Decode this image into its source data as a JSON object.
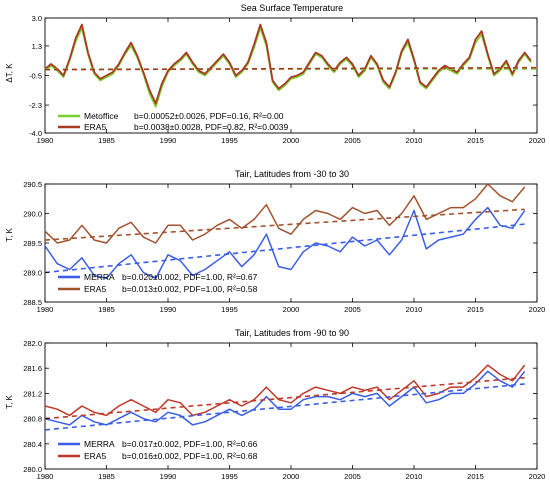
{
  "chart_data": [
    {
      "type": "line",
      "title": "Sea Surface Temperature",
      "xlabel": "",
      "ylabel": "ΔT, K",
      "xlim": [
        1980,
        2020
      ],
      "ylim": [
        -4.0,
        3.0
      ],
      "x_ticks": [
        "1980",
        "1985",
        "1990",
        "1995",
        "2000",
        "2005",
        "2010",
        "2015",
        "2020"
      ],
      "y_ticks": [
        "3.0",
        "1.3",
        "-0.5",
        "-2.3",
        "-4.0"
      ],
      "legend_position": "bottom-left",
      "series": [
        {
          "name": "Metoffice",
          "color": "#7ccd2c",
          "legend": "b=0.00052±0.0026, PDF=0.16, R²=0.00",
          "x": [
            1980.0,
            1980.5,
            1981.0,
            1981.5,
            1982.0,
            1982.5,
            1983.0,
            1983.5,
            1984.0,
            1984.5,
            1985.0,
            1985.5,
            1986.0,
            1986.5,
            1987.0,
            1987.5,
            1988.0,
            1988.5,
            1989.0,
            1989.5,
            1990.0,
            1990.5,
            1991.0,
            1991.5,
            1992.0,
            1992.5,
            1993.0,
            1993.5,
            1994.0,
            1994.5,
            1995.0,
            1995.5,
            1996.0,
            1996.5,
            1997.0,
            1997.5,
            1998.0,
            1998.5,
            1999.0,
            1999.5,
            2000.0,
            2000.5,
            2001.0,
            2001.5,
            2002.0,
            2002.5,
            2003.0,
            2003.5,
            2004.0,
            2004.5,
            2005.0,
            2005.5,
            2006.0,
            2006.5,
            2007.0,
            2007.5,
            2008.0,
            2008.5,
            2009.0,
            2009.5,
            2010.0,
            2010.5,
            2011.0,
            2011.5,
            2012.0,
            2012.5,
            2013.0,
            2013.5,
            2014.0,
            2014.5,
            2015.0,
            2015.5,
            2016.0,
            2016.5,
            2017.0,
            2017.5,
            2018.0,
            2018.5,
            2019.0,
            2019.5
          ],
          "values": [
            -0.2,
            0.1,
            -0.2,
            -0.6,
            0.4,
            1.6,
            2.4,
            0.8,
            -0.4,
            -0.8,
            -0.6,
            -0.4,
            0.1,
            0.8,
            1.3,
            0.6,
            -0.4,
            -1.6,
            -2.4,
            -1.2,
            -0.3,
            0.1,
            0.4,
            0.8,
            0.2,
            -0.3,
            -0.5,
            -0.1,
            0.3,
            0.7,
            0.2,
            -0.6,
            -0.3,
            0.2,
            1.2,
            2.4,
            1.3,
            -0.9,
            -1.4,
            -1.1,
            -0.7,
            -0.6,
            -0.4,
            0.2,
            0.8,
            0.6,
            0.1,
            -0.3,
            0.2,
            0.5,
            0.1,
            -0.6,
            -0.2,
            0.6,
            0.1,
            -0.9,
            -1.3,
            -0.4,
            0.9,
            1.5,
            0.4,
            -1.0,
            -1.3,
            -0.8,
            -0.3,
            0.0,
            -0.2,
            -0.4,
            0.1,
            0.5,
            1.5,
            2.0,
            0.7,
            -0.5,
            -0.2,
            0.3,
            -0.5,
            0.3,
            0.8,
            0.3
          ]
        },
        {
          "name": "ERA5",
          "color": "#a83a24",
          "legend": "b=0.0038±0.0028, PDF=0.82, R²=0.0039",
          "x": [
            1980.0,
            1980.5,
            1981.0,
            1981.5,
            1982.0,
            1982.5,
            1983.0,
            1983.5,
            1984.0,
            1984.5,
            1985.0,
            1985.5,
            1986.0,
            1986.5,
            1987.0,
            1987.5,
            1988.0,
            1988.5,
            1989.0,
            1989.5,
            1990.0,
            1990.5,
            1991.0,
            1991.5,
            1992.0,
            1992.5,
            1993.0,
            1993.5,
            1994.0,
            1994.5,
            1995.0,
            1995.5,
            1996.0,
            1996.5,
            1997.0,
            1997.5,
            1998.0,
            1998.5,
            1999.0,
            1999.5,
            2000.0,
            2000.5,
            2001.0,
            2001.5,
            2002.0,
            2002.5,
            2003.0,
            2003.5,
            2004.0,
            2004.5,
            2005.0,
            2005.5,
            2006.0,
            2006.5,
            2007.0,
            2007.5,
            2008.0,
            2008.5,
            2009.0,
            2009.5,
            2010.0,
            2010.5,
            2011.0,
            2011.5,
            2012.0,
            2012.5,
            2013.0,
            2013.5,
            2014.0,
            2014.5,
            2015.0,
            2015.5,
            2016.0,
            2016.5,
            2017.0,
            2017.5,
            2018.0,
            2018.5,
            2019.0,
            2019.5
          ],
          "values": [
            -0.1,
            0.2,
            -0.1,
            -0.5,
            0.5,
            1.8,
            2.6,
            0.9,
            -0.3,
            -0.7,
            -0.5,
            -0.3,
            0.2,
            0.9,
            1.5,
            0.7,
            -0.3,
            -1.4,
            -2.2,
            -1.0,
            -0.2,
            0.2,
            0.5,
            0.9,
            0.3,
            -0.2,
            -0.4,
            0.0,
            0.4,
            0.8,
            0.3,
            -0.5,
            -0.2,
            0.3,
            1.4,
            2.6,
            1.5,
            -0.8,
            -1.3,
            -1.0,
            -0.6,
            -0.5,
            -0.3,
            0.3,
            0.9,
            0.7,
            0.2,
            -0.2,
            0.3,
            0.6,
            0.2,
            -0.5,
            -0.1,
            0.7,
            0.2,
            -0.8,
            -1.2,
            -0.3,
            1.0,
            1.7,
            0.5,
            -0.9,
            -1.2,
            -0.7,
            -0.2,
            0.1,
            -0.1,
            -0.3,
            0.2,
            0.6,
            1.7,
            2.2,
            0.8,
            -0.4,
            -0.1,
            0.4,
            -0.4,
            0.4,
            0.9,
            0.4
          ]
        }
      ],
      "trend_lines": [
        {
          "name": "Metoffice",
          "color": "#7ccd2c",
          "x": [
            1980,
            2020
          ],
          "y": [
            -0.12,
            -0.1
          ]
        },
        {
          "name": "ERA5",
          "color": "#a83a24",
          "x": [
            1980,
            2020
          ],
          "y": [
            -0.15,
            -0.02
          ]
        }
      ]
    },
    {
      "type": "line",
      "title": "Tair, Latitudes from -30 to 30",
      "xlabel": "",
      "ylabel": "T, K",
      "xlim": [
        1980,
        2020
      ],
      "ylim": [
        288.5,
        290.5
      ],
      "x_ticks": [
        "1980",
        "1985",
        "1990",
        "1995",
        "2000",
        "2005",
        "2010",
        "2015",
        "2020"
      ],
      "y_ticks": [
        "290.5",
        "290.0",
        "289.5",
        "289.0",
        "288.5"
      ],
      "legend_position": "bottom-left",
      "series": [
        {
          "name": "MERRA",
          "color": "#3b5ee6",
          "legend": "b=0.020±0.002, PDF=1.00, R²=0.67",
          "x": [
            1980,
            1981,
            1982,
            1983,
            1984,
            1985,
            1986,
            1987,
            1988,
            1989,
            1990,
            1991,
            1992,
            1993,
            1994,
            1995,
            1996,
            1997,
            1998,
            1999,
            2000,
            2001,
            2002,
            2003,
            2004,
            2005,
            2006,
            2007,
            2008,
            2009,
            2010,
            2011,
            2012,
            2013,
            2014,
            2015,
            2016,
            2017,
            2018,
            2019
          ],
          "values": [
            289.45,
            289.15,
            289.05,
            289.25,
            288.95,
            288.9,
            289.15,
            289.3,
            289.0,
            288.9,
            289.3,
            289.2,
            288.95,
            289.05,
            289.2,
            289.35,
            289.1,
            289.3,
            289.65,
            289.1,
            289.05,
            289.35,
            289.5,
            289.45,
            289.35,
            289.6,
            289.45,
            289.55,
            289.3,
            289.55,
            290.05,
            289.4,
            289.55,
            289.6,
            289.65,
            289.9,
            290.1,
            289.8,
            289.75,
            290.05
          ]
        },
        {
          "name": "ERA5",
          "color": "#a0522d",
          "legend": "b=0.013±0.002, PDF=1.00, R²=0.58",
          "x": [
            1980,
            1981,
            1982,
            1983,
            1984,
            1985,
            1986,
            1987,
            1988,
            1989,
            1990,
            1991,
            1992,
            1993,
            1994,
            1995,
            1996,
            1997,
            1998,
            1999,
            2000,
            2001,
            2002,
            2003,
            2004,
            2005,
            2006,
            2007,
            2008,
            2009,
            2010,
            2011,
            2012,
            2013,
            2014,
            2015,
            2016,
            2017,
            2018,
            2019
          ],
          "values": [
            289.7,
            289.5,
            289.55,
            289.8,
            289.55,
            289.5,
            289.75,
            289.85,
            289.6,
            289.5,
            289.8,
            289.8,
            289.55,
            289.65,
            289.8,
            289.9,
            289.75,
            289.9,
            290.15,
            289.75,
            289.65,
            289.9,
            290.05,
            290.0,
            289.9,
            290.1,
            290.0,
            290.05,
            289.8,
            290.0,
            290.3,
            289.9,
            290.0,
            290.1,
            290.1,
            290.25,
            290.5,
            290.3,
            290.2,
            290.45
          ]
        }
      ],
      "trend_lines": [
        {
          "name": "MERRA",
          "color": "#3b5ee6",
          "x": [
            1980,
            2019
          ],
          "y": [
            289.0,
            289.82
          ]
        },
        {
          "name": "ERA5",
          "color": "#a0522d",
          "x": [
            1980,
            2019
          ],
          "y": [
            289.55,
            290.07
          ]
        }
      ]
    },
    {
      "type": "line",
      "title": "Tair, Latitudes from -90 to 90",
      "xlabel": "",
      "ylabel": "T, K",
      "xlim": [
        1980,
        2020
      ],
      "ylim": [
        280.0,
        282.0
      ],
      "x_ticks": [
        "1980",
        "1985",
        "1990",
        "1995",
        "2000",
        "2005",
        "2010",
        "2015",
        "2020"
      ],
      "y_ticks": [
        "282.0",
        "281.6",
        "281.2",
        "280.8",
        "280.4",
        "280.0"
      ],
      "legend_position": "bottom-left",
      "series": [
        {
          "name": "MERRA",
          "color": "#3b5ee6",
          "legend": "b=0.017±0.002, PDF=1.00, R²=0.66",
          "x": [
            1980,
            1981,
            1982,
            1983,
            1984,
            1985,
            1986,
            1987,
            1988,
            1989,
            1990,
            1991,
            1992,
            1993,
            1994,
            1995,
            1996,
            1997,
            1998,
            1999,
            2000,
            2001,
            2002,
            2003,
            2004,
            2005,
            2006,
            2007,
            2008,
            2009,
            2010,
            2011,
            2012,
            2013,
            2014,
            2015,
            2016,
            2017,
            2018,
            2019
          ],
          "values": [
            280.8,
            280.75,
            280.7,
            280.85,
            280.75,
            280.7,
            280.8,
            280.9,
            280.8,
            280.75,
            280.9,
            280.85,
            280.7,
            280.75,
            280.85,
            280.95,
            280.85,
            280.95,
            281.15,
            280.95,
            280.95,
            281.1,
            281.15,
            281.15,
            281.1,
            281.2,
            281.15,
            281.2,
            281.0,
            281.15,
            281.3,
            281.05,
            281.1,
            281.2,
            281.2,
            281.35,
            281.55,
            281.4,
            281.3,
            281.55
          ]
        },
        {
          "name": "ERA5",
          "color": "#c0392b",
          "legend": "b=0.016±0.002, PDF=1.00, R²=0.68",
          "x": [
            1980,
            1981,
            1982,
            1983,
            1984,
            1985,
            1986,
            1987,
            1988,
            1989,
            1990,
            1991,
            1992,
            1993,
            1994,
            1995,
            1996,
            1997,
            1998,
            1999,
            2000,
            2001,
            2002,
            2003,
            2004,
            2005,
            2006,
            2007,
            2008,
            2009,
            2010,
            2011,
            2012,
            2013,
            2014,
            2015,
            2016,
            2017,
            2018,
            2019
          ],
          "values": [
            281.0,
            280.95,
            280.85,
            281.0,
            280.9,
            280.85,
            281.0,
            281.1,
            281.0,
            280.9,
            281.1,
            281.05,
            280.85,
            280.9,
            281.0,
            281.1,
            281.0,
            281.1,
            281.3,
            281.1,
            281.05,
            281.2,
            281.3,
            281.25,
            281.2,
            281.3,
            281.25,
            281.3,
            281.1,
            281.25,
            281.4,
            281.15,
            281.2,
            281.3,
            281.3,
            281.45,
            281.65,
            281.5,
            281.4,
            281.65
          ]
        }
      ],
      "trend_lines": [
        {
          "name": "MERRA",
          "color": "#3b5ee6",
          "x": [
            1980,
            2019
          ],
          "y": [
            280.62,
            281.35
          ]
        },
        {
          "name": "ERA5",
          "color": "#c0392b",
          "x": [
            1980,
            2019
          ],
          "y": [
            280.8,
            281.45
          ]
        }
      ]
    }
  ]
}
